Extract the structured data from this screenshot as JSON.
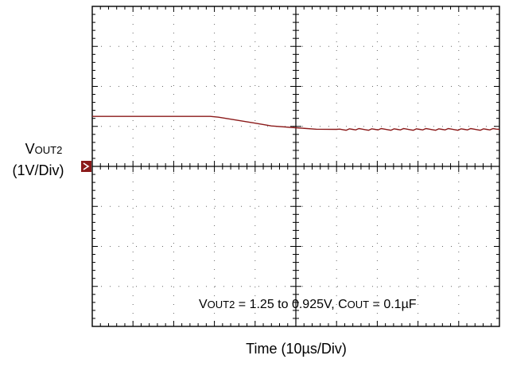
{
  "chart_data": {
    "type": "line",
    "series": [
      {
        "name": "VOUT2",
        "x": [
          -5,
          -2.1,
          -1.9,
          -1.0,
          -0.6,
          0.0,
          0.5,
          1.0,
          5.0
        ],
        "y": [
          1.25,
          1.25,
          1.23,
          1.08,
          1.01,
          0.965,
          0.93,
          0.925,
          0.925
        ]
      }
    ],
    "xlim": [
      -5,
      5
    ],
    "ylim": [
      -4,
      4
    ],
    "grid": true,
    "color": "#8b1a1a",
    "marker_color": "#8b1a1a",
    "ylabel": {
      "main": "V",
      "sub": "OUT2",
      "scale": "(1V/Div)"
    },
    "xlabel": "Time  (10µs/Div)",
    "annotation": {
      "v_main": "V",
      "v_sub": "OUT2",
      "v_text": " = 1.25 to 0.925V, C",
      "c_sub": "OUT",
      "c_text": " = 0.1µF"
    }
  }
}
